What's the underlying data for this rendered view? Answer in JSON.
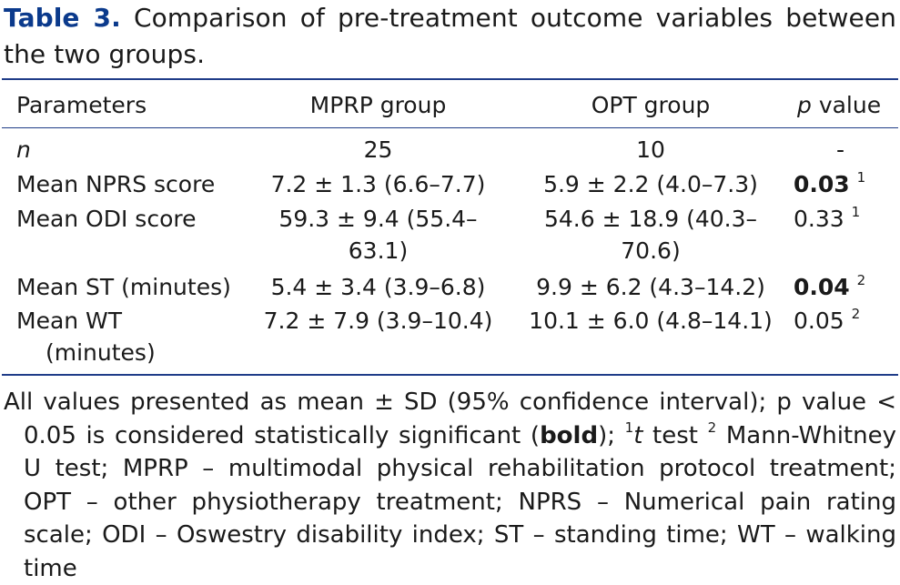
{
  "title": {
    "label": "Table 3.",
    "text": "Comparison of pre-treatment outcome variables between the two groups."
  },
  "columns": {
    "parameters": "Parameters",
    "mprp": "MPRP group",
    "opt": "OPT group",
    "p_italic": "p",
    "p_rest": " value"
  },
  "rows": [
    {
      "param": "n",
      "mprp": "25",
      "opt": "10",
      "p": "-",
      "p_sup": ""
    },
    {
      "param": "Mean NPRS score",
      "mprp": "7.2 ± 1.3 (6.6–7.7)",
      "opt": "5.9 ± 2.2 (4.0–7.3)",
      "p": "0.03",
      "p_sup": "1"
    },
    {
      "param": "Mean ODI score",
      "mprp_line1": "59.3 ± 9.4 (55.4–",
      "mprp_line2": "63.1)",
      "opt_line1": "54.6 ± 18.9 (40.3–",
      "opt_line2": "70.6)",
      "p": "0.33",
      "p_sup": "1"
    },
    {
      "param": "Mean ST (minutes)",
      "mprp": "5.4 ± 3.4 (3.9–6.8)",
      "opt": "9.9 ± 6.2 (4.3–14.2)",
      "p": "0.04",
      "p_sup": "2"
    },
    {
      "param_line1": "Mean WT",
      "param_line2": "(minutes)",
      "mprp": "7.2 ± 7.9 (3.9–10.4)",
      "opt": "10.1 ± 6.0 (4.8–14.1)",
      "p": "0.05",
      "p_sup": "2"
    }
  ],
  "note": {
    "part1": "All values presented as mean ± SD (95% confidence interval); p value < 0.05 is considered statistically significant (",
    "bold_word": "bold",
    "part2": "); ",
    "sup1": "1",
    "t_italic": "t",
    "part3": " test ",
    "sup2": "2",
    "part4": " Mann-Whitney U test; MPRP – multimodal physical rehabilitation protocol treatment; OPT – other physiotherapy treatment; NPRS – Numerical pain rating scale; ODI – Oswestry disability index; ST – standing time; WT – walking time"
  }
}
